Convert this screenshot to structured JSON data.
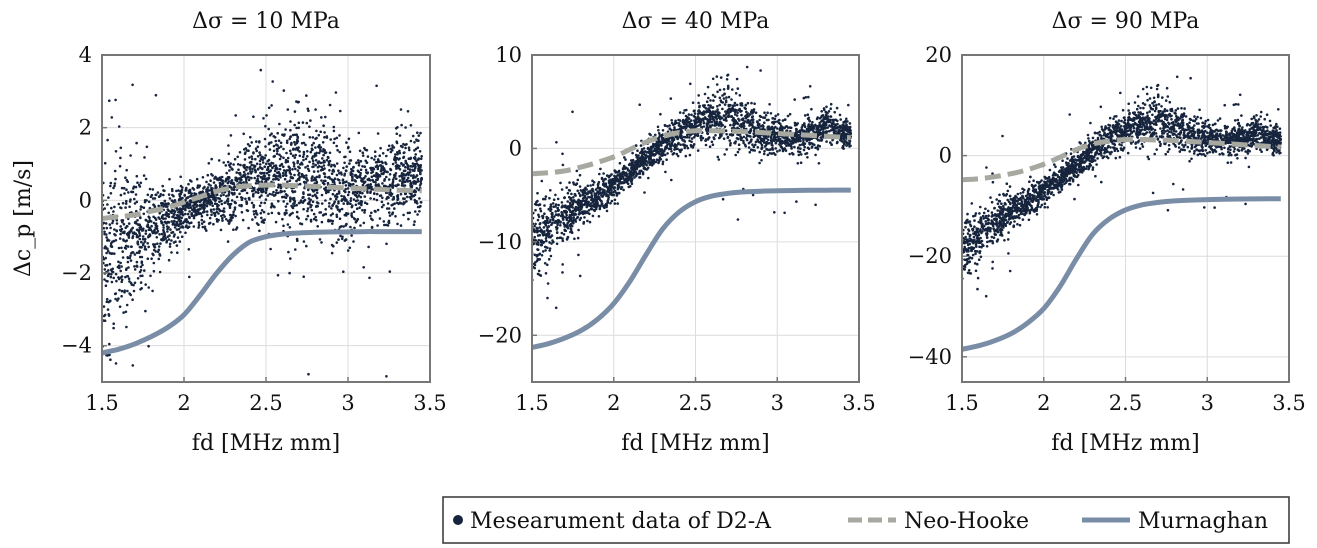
{
  "chart_data": [
    {
      "type": "scatter",
      "title": "Δσ = 10 MPa",
      "xlabel": "fd [MHz mm]",
      "ylabel": "Δc_p [m/s]",
      "xlim": [
        1.5,
        3.5
      ],
      "ylim": [
        -5,
        4
      ],
      "xticks": [
        1.5,
        2,
        2.5,
        3,
        3.5
      ],
      "yticks": [
        -4,
        -2,
        0,
        2,
        4
      ],
      "xtick_labels": [
        "1.5",
        "2",
        "2.5",
        "3",
        "3.5"
      ],
      "ytick_labels": [
        "−4",
        "−2",
        "0",
        "2",
        "4"
      ],
      "grid": true,
      "series": [
        {
          "name": "Mesearument data of D2-A",
          "kind": "scatter",
          "color": "#16243d",
          "trend": [
            [
              1.5,
              -1.5
            ],
            [
              1.6,
              -1.4
            ],
            [
              1.7,
              -1.1
            ],
            [
              1.8,
              -0.8
            ],
            [
              1.9,
              -0.5
            ],
            [
              2.0,
              -0.3
            ],
            [
              2.1,
              -0.1
            ],
            [
              2.2,
              0.1
            ],
            [
              2.3,
              0.3
            ],
            [
              2.4,
              0.6
            ],
            [
              2.5,
              0.7
            ],
            [
              2.6,
              0.7
            ],
            [
              2.7,
              0.6
            ],
            [
              2.8,
              0.7
            ],
            [
              2.9,
              0.4
            ],
            [
              3.0,
              0.3
            ],
            [
              3.1,
              0.4
            ],
            [
              3.2,
              0.5
            ],
            [
              3.3,
              0.6
            ],
            [
              3.4,
              0.6
            ],
            [
              3.45,
              0.5
            ]
          ],
          "spread": [
            [
              1.5,
              2.0
            ],
            [
              1.7,
              1.3
            ],
            [
              1.9,
              0.6
            ],
            [
              2.1,
              0.4
            ],
            [
              2.4,
              0.8
            ],
            [
              2.7,
              1.2
            ],
            [
              2.9,
              1.0
            ],
            [
              3.1,
              0.8
            ],
            [
              3.45,
              0.8
            ]
          ]
        },
        {
          "name": "Neo-Hooke",
          "kind": "line",
          "style": "dashed",
          "color": "#a7a9a0",
          "points": [
            [
              1.5,
              -0.5
            ],
            [
              1.6,
              -0.45
            ],
            [
              1.7,
              -0.4
            ],
            [
              1.8,
              -0.3
            ],
            [
              1.9,
              -0.2
            ],
            [
              2.0,
              -0.05
            ],
            [
              2.1,
              0.1
            ],
            [
              2.2,
              0.25
            ],
            [
              2.3,
              0.35
            ],
            [
              2.4,
              0.4
            ],
            [
              2.5,
              0.42
            ],
            [
              2.6,
              0.42
            ],
            [
              2.7,
              0.4
            ],
            [
              2.8,
              0.38
            ],
            [
              2.9,
              0.36
            ],
            [
              3.0,
              0.34
            ],
            [
              3.1,
              0.32
            ],
            [
              3.2,
              0.3
            ],
            [
              3.3,
              0.28
            ],
            [
              3.4,
              0.27
            ],
            [
              3.45,
              0.26
            ]
          ]
        },
        {
          "name": "Murnaghan",
          "kind": "line",
          "style": "solid",
          "color": "#7a8da6",
          "points": [
            [
              1.5,
              -4.2
            ],
            [
              1.6,
              -4.1
            ],
            [
              1.7,
              -3.95
            ],
            [
              1.8,
              -3.75
            ],
            [
              1.9,
              -3.5
            ],
            [
              2.0,
              -3.15
            ],
            [
              2.1,
              -2.6
            ],
            [
              2.2,
              -2.0
            ],
            [
              2.3,
              -1.5
            ],
            [
              2.4,
              -1.15
            ],
            [
              2.5,
              -1.0
            ],
            [
              2.6,
              -0.93
            ],
            [
              2.7,
              -0.9
            ],
            [
              2.8,
              -0.88
            ],
            [
              2.9,
              -0.87
            ],
            [
              3.0,
              -0.87
            ],
            [
              3.1,
              -0.86
            ],
            [
              3.2,
              -0.86
            ],
            [
              3.3,
              -0.86
            ],
            [
              3.4,
              -0.86
            ],
            [
              3.45,
              -0.86
            ]
          ]
        }
      ]
    },
    {
      "type": "scatter",
      "title": "Δσ = 40 MPa",
      "xlabel": "fd [MHz mm]",
      "ylabel": "",
      "xlim": [
        1.5,
        3.5
      ],
      "ylim": [
        -25,
        10
      ],
      "xticks": [
        1.5,
        2,
        2.5,
        3,
        3.5
      ],
      "yticks": [
        -20,
        -10,
        0,
        10
      ],
      "xtick_labels": [
        "1.5",
        "2",
        "2.5",
        "3",
        "3.5"
      ],
      "ytick_labels": [
        "−20",
        "−10",
        "0",
        "10"
      ],
      "grid": true,
      "series": [
        {
          "name": "Mesearument data of D2-A",
          "kind": "scatter",
          "color": "#16243d",
          "trend": [
            [
              1.5,
              -10
            ],
            [
              1.6,
              -8.5
            ],
            [
              1.7,
              -7
            ],
            [
              1.8,
              -6
            ],
            [
              1.9,
              -5
            ],
            [
              2.0,
              -4
            ],
            [
              2.1,
              -2.5
            ],
            [
              2.2,
              -1
            ],
            [
              2.3,
              0.5
            ],
            [
              2.4,
              1.5
            ],
            [
              2.5,
              2.5
            ],
            [
              2.6,
              3
            ],
            [
              2.7,
              3.5
            ],
            [
              2.8,
              2.5
            ],
            [
              2.9,
              1.5
            ],
            [
              3.0,
              1.5
            ],
            [
              3.1,
              1
            ],
            [
              3.2,
              1.5
            ],
            [
              3.3,
              2.5
            ],
            [
              3.4,
              1.5
            ],
            [
              3.45,
              1.5
            ]
          ],
          "spread": [
            [
              1.5,
              3
            ],
            [
              1.7,
              2
            ],
            [
              1.9,
              1.2
            ],
            [
              2.2,
              1
            ],
            [
              2.5,
              1.5
            ],
            [
              2.7,
              2.5
            ],
            [
              2.9,
              1.5
            ],
            [
              3.2,
              1.2
            ],
            [
              3.45,
              1
            ]
          ]
        },
        {
          "name": "Neo-Hooke",
          "kind": "line",
          "style": "dashed",
          "color": "#a7a9a0",
          "points": [
            [
              1.5,
              -2.7
            ],
            [
              1.6,
              -2.6
            ],
            [
              1.7,
              -2.4
            ],
            [
              1.8,
              -2.0
            ],
            [
              1.9,
              -1.5
            ],
            [
              2.0,
              -0.9
            ],
            [
              2.1,
              -0.1
            ],
            [
              2.2,
              0.7
            ],
            [
              2.3,
              1.3
            ],
            [
              2.4,
              1.7
            ],
            [
              2.5,
              1.9
            ],
            [
              2.6,
              1.9
            ],
            [
              2.7,
              1.85
            ],
            [
              2.8,
              1.8
            ],
            [
              2.9,
              1.7
            ],
            [
              3.0,
              1.6
            ],
            [
              3.1,
              1.5
            ],
            [
              3.2,
              1.4
            ],
            [
              3.3,
              1.3
            ],
            [
              3.4,
              1.2
            ],
            [
              3.45,
              1.15
            ]
          ]
        },
        {
          "name": "Murnaghan",
          "kind": "line",
          "style": "solid",
          "color": "#7a8da6",
          "points": [
            [
              1.5,
              -21.3
            ],
            [
              1.6,
              -20.9
            ],
            [
              1.7,
              -20.3
            ],
            [
              1.8,
              -19.5
            ],
            [
              1.9,
              -18.3
            ],
            [
              2.0,
              -16.6
            ],
            [
              2.1,
              -14.2
            ],
            [
              2.2,
              -11.3
            ],
            [
              2.3,
              -8.6
            ],
            [
              2.4,
              -6.8
            ],
            [
              2.5,
              -5.7
            ],
            [
              2.6,
              -5.1
            ],
            [
              2.7,
              -4.8
            ],
            [
              2.8,
              -4.65
            ],
            [
              2.9,
              -4.58
            ],
            [
              3.0,
              -4.53
            ],
            [
              3.1,
              -4.5
            ],
            [
              3.2,
              -4.48
            ],
            [
              3.3,
              -4.47
            ],
            [
              3.4,
              -4.46
            ],
            [
              3.45,
              -4.46
            ]
          ]
        }
      ]
    },
    {
      "type": "scatter",
      "title": "Δσ = 90 MPa",
      "xlabel": "fd [MHz mm]",
      "ylabel": "",
      "xlim": [
        1.5,
        3.5
      ],
      "ylim": [
        -45,
        20
      ],
      "xticks": [
        1.5,
        2,
        2.5,
        3,
        3.5
      ],
      "yticks": [
        -40,
        -20,
        0,
        20
      ],
      "xtick_labels": [
        "1.5",
        "2",
        "2.5",
        "3",
        "3.5"
      ],
      "ytick_labels": [
        "−40",
        "−20",
        "0",
        "20"
      ],
      "grid": true,
      "series": [
        {
          "name": "Mesearument data of D2-A",
          "kind": "scatter",
          "color": "#16243d",
          "trend": [
            [
              1.5,
              -19
            ],
            [
              1.6,
              -16
            ],
            [
              1.7,
              -13
            ],
            [
              1.8,
              -11
            ],
            [
              1.9,
              -9
            ],
            [
              2.0,
              -7
            ],
            [
              2.1,
              -4.5
            ],
            [
              2.2,
              -2
            ],
            [
              2.3,
              1
            ],
            [
              2.4,
              3.5
            ],
            [
              2.5,
              5
            ],
            [
              2.6,
              6
            ],
            [
              2.7,
              7
            ],
            [
              2.8,
              5.5
            ],
            [
              2.9,
              4
            ],
            [
              3.0,
              3.5
            ],
            [
              3.1,
              3
            ],
            [
              3.2,
              3.5
            ],
            [
              3.3,
              4.5
            ],
            [
              3.4,
              3
            ],
            [
              3.45,
              3
            ]
          ],
          "spread": [
            [
              1.5,
              4
            ],
            [
              1.7,
              3
            ],
            [
              1.9,
              2
            ],
            [
              2.2,
              1.8
            ],
            [
              2.5,
              2.5
            ],
            [
              2.7,
              4
            ],
            [
              2.9,
              2.5
            ],
            [
              3.2,
              2
            ],
            [
              3.45,
              2
            ]
          ]
        },
        {
          "name": "Neo-Hooke",
          "kind": "line",
          "style": "dashed",
          "color": "#a7a9a0",
          "points": [
            [
              1.5,
              -4.8
            ],
            [
              1.6,
              -4.6
            ],
            [
              1.7,
              -4.2
            ],
            [
              1.8,
              -3.6
            ],
            [
              1.9,
              -2.8
            ],
            [
              2.0,
              -1.7
            ],
            [
              2.1,
              -0.3
            ],
            [
              2.2,
              1.2
            ],
            [
              2.3,
              2.3
            ],
            [
              2.4,
              2.9
            ],
            [
              2.5,
              3.2
            ],
            [
              2.6,
              3.2
            ],
            [
              2.7,
              3.1
            ],
            [
              2.8,
              3.0
            ],
            [
              2.9,
              2.8
            ],
            [
              3.0,
              2.6
            ],
            [
              3.1,
              2.4
            ],
            [
              3.2,
              2.2
            ],
            [
              3.3,
              2.0
            ],
            [
              3.4,
              1.8
            ],
            [
              3.45,
              1.7
            ]
          ]
        },
        {
          "name": "Murnaghan",
          "kind": "line",
          "style": "solid",
          "color": "#7a8da6",
          "points": [
            [
              1.5,
              -38.5
            ],
            [
              1.6,
              -37.8
            ],
            [
              1.7,
              -36.8
            ],
            [
              1.8,
              -35.4
            ],
            [
              1.9,
              -33.3
            ],
            [
              2.0,
              -30.4
            ],
            [
              2.1,
              -26.0
            ],
            [
              2.2,
              -20.5
            ],
            [
              2.3,
              -15.6
            ],
            [
              2.4,
              -12.6
            ],
            [
              2.5,
              -10.8
            ],
            [
              2.6,
              -9.8
            ],
            [
              2.7,
              -9.3
            ],
            [
              2.8,
              -9.0
            ],
            [
              2.9,
              -8.85
            ],
            [
              3.0,
              -8.75
            ],
            [
              3.1,
              -8.68
            ],
            [
              3.2,
              -8.63
            ],
            [
              3.3,
              -8.6
            ],
            [
              3.4,
              -8.58
            ],
            [
              3.45,
              -8.57
            ]
          ]
        }
      ]
    }
  ],
  "legend": {
    "placement": "bottom-right",
    "entries": [
      {
        "label": "Mesearument data of D2-A",
        "marker": "dot",
        "color": "#16243d"
      },
      {
        "label": "Neo-Hooke",
        "marker": "dashed-line",
        "color": "#a7a9a0"
      },
      {
        "label": "Murnaghan",
        "marker": "solid-line",
        "color": "#7a8da6"
      }
    ]
  }
}
